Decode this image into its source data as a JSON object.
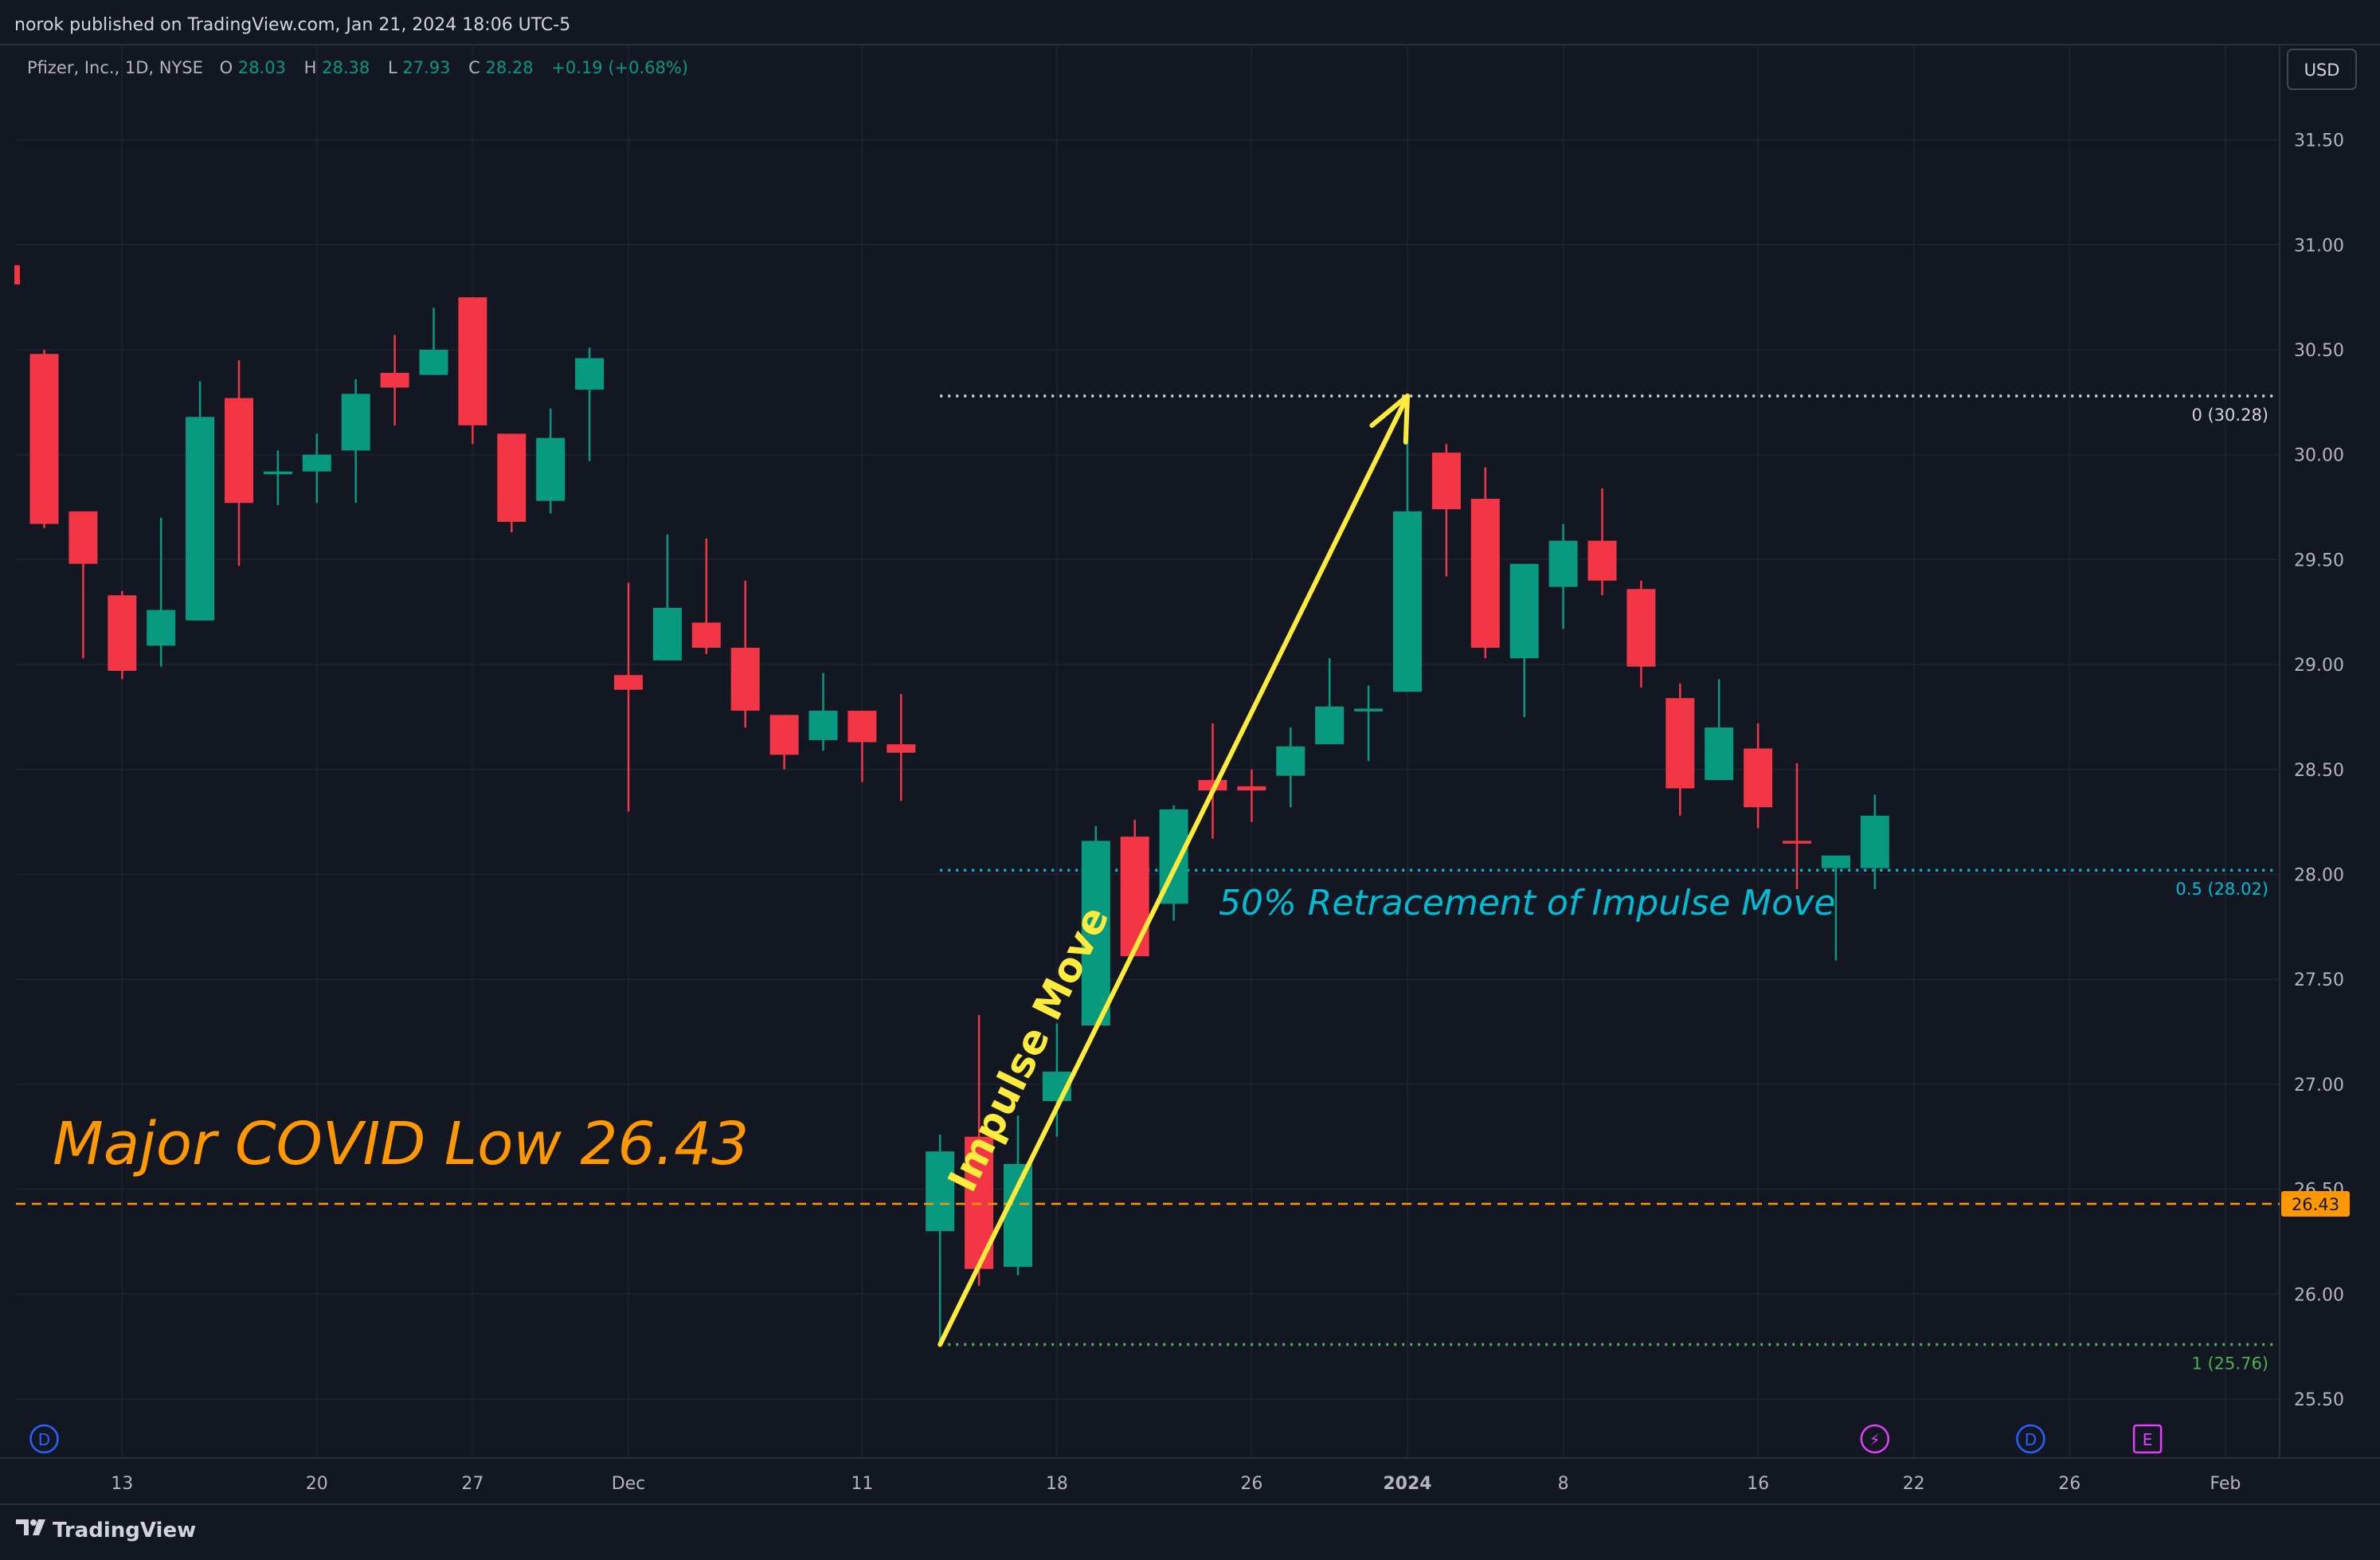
{
  "header": {
    "published": "norok published on TradingView.com, Jan 21, 2024 18:06 UTC-5",
    "symbol": "Pfizer, Inc., 1D, NYSE",
    "ohlc": {
      "o_label": "O",
      "o_value": "28.03",
      "h_label": "H",
      "h_value": "28.38",
      "l_label": "L",
      "l_value": "27.93",
      "c_label": "C",
      "c_value": "28.28",
      "change": "+0.19 (+0.68%)"
    },
    "currency": "USD"
  },
  "footer": {
    "brand": "TradingView"
  },
  "colors": {
    "background": "#131722",
    "grid": "#1f2430",
    "up": "#089981",
    "down": "#f23645",
    "text": "#b2b5be",
    "impulse": "#ffeb3b",
    "covid_low": "#ff9800",
    "fib_zero": "#d1d4dc",
    "fib_half": "#00bcd4",
    "fib_one": "#4caf50"
  },
  "annotations": {
    "covid_low_text": "Major COVID Low 26.43",
    "impulse_text": "Impulse Move",
    "retracement_text": "50% Retracement of Impulse Move",
    "fib0_label": "0 (30.28)",
    "fib05_label": "0.5 (28.02)",
    "fib1_label": "1 (25.76)",
    "price_tag": "26.43"
  },
  "markers": [
    {
      "icon": "dividend-d-icon",
      "text": "D",
      "color": "#2962ff",
      "date": "2023-11-09"
    },
    {
      "icon": "lightning-icon",
      "text": "⚡",
      "color": "#e040fb",
      "date": "2024-01-19"
    },
    {
      "icon": "dividend-d-icon",
      "text": "D",
      "color": "#2962ff",
      "date": "2024-01-25"
    },
    {
      "icon": "earnings-e-icon",
      "text": "E",
      "color": "#e040fb",
      "date": "2024-01-30"
    }
  ],
  "chart_data": {
    "type": "candlestick",
    "title": "Pfizer, Inc., 1D, NYSE",
    "y_ticks": [
      "25.50",
      "26.00",
      "26.50",
      "27.00",
      "27.50",
      "28.00",
      "28.50",
      "29.00",
      "29.50",
      "30.00",
      "30.50",
      "31.00",
      "31.50"
    ],
    "ylim": [
      25.3,
      31.95
    ],
    "x_ticks": [
      {
        "label": "13",
        "date": "2023-11-13"
      },
      {
        "label": "20",
        "date": "2023-11-20"
      },
      {
        "label": "27",
        "date": "2023-11-27"
      },
      {
        "label": "Dec",
        "date": "2023-12-01"
      },
      {
        "label": "11",
        "date": "2023-12-11"
      },
      {
        "label": "18",
        "date": "2023-12-18"
      },
      {
        "label": "26",
        "date": "2023-12-26"
      },
      {
        "label": "2024",
        "date": "2024-01-02",
        "bold": true
      },
      {
        "label": "8",
        "date": "2024-01-08"
      },
      {
        "label": "16",
        "date": "2024-01-16"
      },
      {
        "label": "22",
        "date": "2024-01-22"
      },
      {
        "label": "26",
        "date": "2024-01-26"
      },
      {
        "label": "Feb",
        "date": "2024-02-01"
      }
    ],
    "candles": [
      {
        "date": "2023-11-09",
        "o": 30.48,
        "h": 30.5,
        "l": 29.65,
        "c": 29.67
      },
      {
        "date": "2023-11-10",
        "o": 29.73,
        "h": 29.73,
        "l": 29.03,
        "c": 29.48
      },
      {
        "date": "2023-11-13",
        "o": 29.33,
        "h": 29.35,
        "l": 28.93,
        "c": 28.97
      },
      {
        "date": "2023-11-14",
        "o": 29.09,
        "h": 29.7,
        "l": 28.99,
        "c": 29.26
      },
      {
        "date": "2023-11-15",
        "o": 29.21,
        "h": 30.35,
        "l": 29.21,
        "c": 30.18
      },
      {
        "date": "2023-11-16",
        "o": 30.27,
        "h": 30.45,
        "l": 29.47,
        "c": 29.77
      },
      {
        "date": "2023-11-17",
        "o": 29.92,
        "h": 30.02,
        "l": 29.76,
        "c": 29.92
      },
      {
        "date": "2023-11-20",
        "o": 29.92,
        "h": 30.1,
        "l": 29.77,
        "c": 30.0
      },
      {
        "date": "2023-11-21",
        "o": 30.02,
        "h": 30.36,
        "l": 29.77,
        "c": 30.29
      },
      {
        "date": "2023-11-22",
        "o": 30.39,
        "h": 30.57,
        "l": 30.14,
        "c": 30.32
      },
      {
        "date": "2023-11-24",
        "o": 30.38,
        "h": 30.7,
        "l": 30.38,
        "c": 30.5
      },
      {
        "date": "2023-11-27",
        "o": 30.75,
        "h": 30.75,
        "l": 30.05,
        "c": 30.14
      },
      {
        "date": "2023-11-28",
        "o": 30.1,
        "h": 30.1,
        "l": 29.63,
        "c": 29.68
      },
      {
        "date": "2023-11-29",
        "o": 29.78,
        "h": 30.22,
        "l": 29.72,
        "c": 30.08
      },
      {
        "date": "2023-11-30",
        "o": 30.31,
        "h": 30.51,
        "l": 29.97,
        "c": 30.46
      },
      {
        "date": "2023-12-01",
        "o": 28.95,
        "h": 29.39,
        "l": 28.3,
        "c": 28.88
      },
      {
        "date": "2023-12-04",
        "o": 29.02,
        "h": 29.62,
        "l": 29.02,
        "c": 29.27
      },
      {
        "date": "2023-12-05",
        "o": 29.2,
        "h": 29.6,
        "l": 29.05,
        "c": 29.08
      },
      {
        "date": "2023-12-06",
        "o": 29.08,
        "h": 29.4,
        "l": 28.7,
        "c": 28.78
      },
      {
        "date": "2023-12-07",
        "o": 28.76,
        "h": 28.76,
        "l": 28.5,
        "c": 28.57
      },
      {
        "date": "2023-12-08",
        "o": 28.64,
        "h": 28.96,
        "l": 28.59,
        "c": 28.78
      },
      {
        "date": "2023-12-11",
        "o": 28.78,
        "h": 28.78,
        "l": 28.44,
        "c": 28.63
      },
      {
        "date": "2023-12-12",
        "o": 28.62,
        "h": 28.86,
        "l": 28.35,
        "c": 28.58
      },
      {
        "date": "2023-12-13",
        "o": 26.3,
        "h": 26.76,
        "l": 25.76,
        "c": 26.68
      },
      {
        "date": "2023-12-14",
        "o": 26.75,
        "h": 27.33,
        "l": 26.04,
        "c": 26.12
      },
      {
        "date": "2023-12-15",
        "o": 26.13,
        "h": 26.85,
        "l": 26.09,
        "c": 26.62
      },
      {
        "date": "2023-12-18",
        "o": 26.92,
        "h": 27.29,
        "l": 26.75,
        "c": 27.06
      },
      {
        "date": "2023-12-19",
        "o": 27.28,
        "h": 28.23,
        "l": 27.28,
        "c": 28.16
      },
      {
        "date": "2023-12-20",
        "o": 28.18,
        "h": 28.26,
        "l": 27.61,
        "c": 27.61
      },
      {
        "date": "2023-12-21",
        "o": 27.86,
        "h": 28.33,
        "l": 27.78,
        "c": 28.31
      },
      {
        "date": "2023-12-22",
        "o": 28.45,
        "h": 28.72,
        "l": 28.17,
        "c": 28.4
      },
      {
        "date": "2023-12-26",
        "o": 28.42,
        "h": 28.5,
        "l": 28.25,
        "c": 28.4
      },
      {
        "date": "2023-12-27",
        "o": 28.47,
        "h": 28.7,
        "l": 28.32,
        "c": 28.61
      },
      {
        "date": "2023-12-28",
        "o": 28.62,
        "h": 29.03,
        "l": 28.62,
        "c": 28.8
      },
      {
        "date": "2023-12-29",
        "o": 28.79,
        "h": 28.9,
        "l": 28.54,
        "c": 28.79
      },
      {
        "date": "2024-01-02",
        "o": 28.87,
        "h": 30.19,
        "l": 28.87,
        "c": 29.73
      },
      {
        "date": "2024-01-03",
        "o": 30.01,
        "h": 30.05,
        "l": 29.42,
        "c": 29.74
      },
      {
        "date": "2024-01-04",
        "o": 29.79,
        "h": 29.94,
        "l": 29.03,
        "c": 29.08
      },
      {
        "date": "2024-01-05",
        "o": 29.03,
        "h": 29.45,
        "l": 28.75,
        "c": 29.48
      },
      {
        "date": "2024-01-08",
        "o": 29.37,
        "h": 29.67,
        "l": 29.17,
        "c": 29.59
      },
      {
        "date": "2024-01-09",
        "o": 29.59,
        "h": 29.84,
        "l": 29.33,
        "c": 29.4
      },
      {
        "date": "2024-01-10",
        "o": 29.36,
        "h": 29.4,
        "l": 28.89,
        "c": 28.99
      },
      {
        "date": "2024-01-11",
        "o": 28.84,
        "h": 28.91,
        "l": 28.28,
        "c": 28.41
      },
      {
        "date": "2024-01-12",
        "o": 28.45,
        "h": 28.93,
        "l": 28.45,
        "c": 28.7
      },
      {
        "date": "2024-01-16",
        "o": 28.6,
        "h": 28.72,
        "l": 28.22,
        "c": 28.32
      },
      {
        "date": "2024-01-17",
        "o": 28.16,
        "h": 28.53,
        "l": 27.93,
        "c": 28.15
      },
      {
        "date": "2024-01-18",
        "o": 28.03,
        "h": 28.05,
        "l": 27.59,
        "c": 28.09
      },
      {
        "date": "2024-01-19",
        "o": 28.03,
        "h": 28.38,
        "l": 27.93,
        "c": 28.28
      }
    ],
    "fib_levels": [
      {
        "ratio": "0",
        "price": 30.28
      },
      {
        "ratio": "0.5",
        "price": 28.02
      },
      {
        "ratio": "1",
        "price": 25.76
      }
    ],
    "covid_low": 26.43,
    "impulse": {
      "from_date": "2023-12-13",
      "from_price": 25.76,
      "to_date": "2024-01-02",
      "to_price": 30.28
    }
  }
}
